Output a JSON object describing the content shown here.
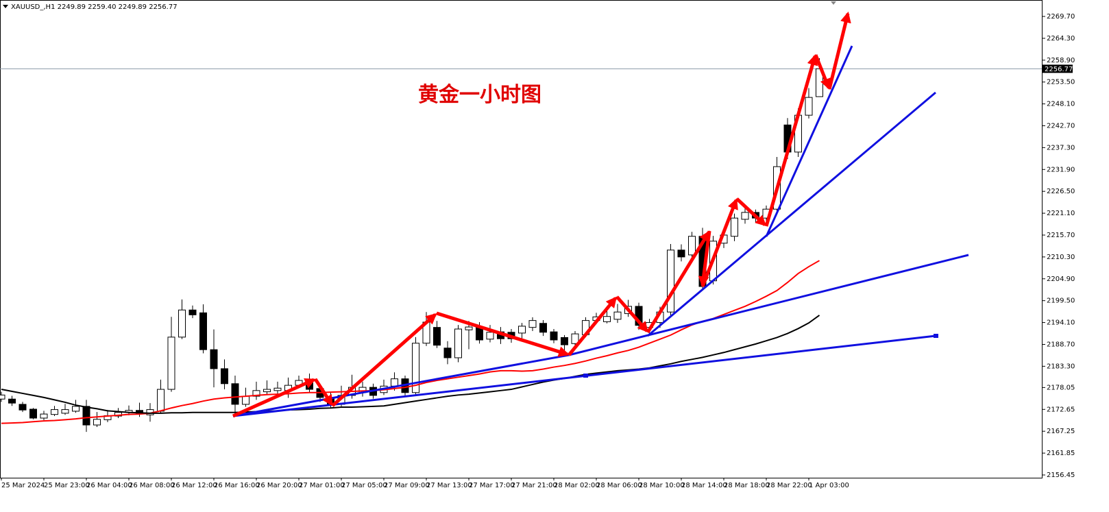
{
  "chart_data": {
    "type": "candlestick",
    "header": "XAUUSD_,H1  2249.89 2259.40 2249.89 2256.77",
    "annotation": "黄金一小时图",
    "last_price": 2256.77,
    "up_color": "#ffffff",
    "down_color": "#000000",
    "categories": [
      "25 Mar 2024",
      null,
      null,
      null,
      "25 Mar 23:00",
      null,
      null,
      null,
      "26 Mar 04:00",
      null,
      null,
      null,
      "26 Mar 08:00",
      null,
      null,
      null,
      "26 Mar 12:00",
      null,
      null,
      null,
      "26 Mar 16:00",
      null,
      null,
      null,
      "26 Mar 20:00",
      null,
      null,
      null,
      "27 Mar 01:00",
      null,
      null,
      null,
      "27 Mar 05:00",
      null,
      null,
      null,
      "27 Mar 09:00",
      null,
      null,
      null,
      "27 Mar 13:00",
      null,
      null,
      null,
      "27 Mar 17:00",
      null,
      null,
      null,
      "27 Mar 21:00",
      null,
      null,
      null,
      "28 Mar 02:00",
      null,
      null,
      null,
      "28 Mar 06:00",
      null,
      null,
      null,
      "28 Mar 10:00",
      null,
      null,
      null,
      "28 Mar 14:00",
      null,
      null,
      null,
      "28 Mar 18:00",
      null,
      null,
      null,
      "28 Mar 22:00",
      null,
      null,
      null,
      "1 Apr 03:00",
      null
    ],
    "open": [
      2175.2,
      2175.2,
      2173.9,
      2172.7,
      2170.5,
      2171.4,
      2171.7,
      2172.2,
      2173.4,
      2168.8,
      2170.1,
      2171.0,
      2171.9,
      2172.4,
      2171.3,
      2172.2,
      2177.6,
      2190.5,
      2197.2,
      2196.5,
      2187.4,
      2182.7,
      2179.0,
      2173.9,
      2175.9,
      2177.0,
      2177.3,
      2177.3,
      2178.6,
      2179.5,
      2177.8,
      2175.6,
      2173.9,
      2176.1,
      2176.8,
      2178.1,
      2176.8,
      2178.4,
      2180.2,
      2176.8,
      2189.0,
      2192.9,
      2187.8,
      2185.4,
      2192.3,
      2192.9,
      2190.0,
      2191.8,
      2191.7,
      2191.5,
      2192.9,
      2193.9,
      2191.8,
      2190.4,
      2188.9,
      2191.1,
      2194.6,
      2194.3,
      2194.9,
      2196.3,
      2198.1,
      2192.9,
      2194.1,
      2196.7,
      2212.0,
      2210.8,
      2215.4,
      2204.4,
      2213.7,
      2215.4,
      2219.6,
      2221.3,
      2219.9,
      2222.1,
      2242.9,
      2236.2,
      2245.3,
      2249.89
    ],
    "high": [
      2177.0,
      2176.0,
      2174.5,
      2173.0,
      2172.3,
      2173.5,
      2174.0,
      2175.0,
      2175.0,
      2172.0,
      2172.5,
      2173.0,
      2173.6,
      2174.3,
      2174.2,
      2180.0,
      2195.5,
      2199.8,
      2198.3,
      2198.6,
      2192.4,
      2185.0,
      2181.0,
      2178.0,
      2179.5,
      2179.8,
      2179.5,
      2180.5,
      2181.0,
      2181.5,
      2178.5,
      2177.0,
      2178.5,
      2181.2,
      2179.5,
      2179.0,
      2180.0,
      2181.8,
      2181.0,
      2190.5,
      2196.7,
      2194.5,
      2189.5,
      2193.5,
      2194.5,
      2194.2,
      2193.5,
      2193.0,
      2192.5,
      2194.0,
      2195.4,
      2194.7,
      2192.5,
      2191.0,
      2192.0,
      2195.4,
      2196.5,
      2197.0,
      2198.7,
      2199.7,
      2199.0,
      2195.0,
      2198.0,
      2213.5,
      2213.4,
      2216.5,
      2217.5,
      2215.5,
      2217.0,
      2221.0,
      2222.5,
      2222.0,
      2223.0,
      2235.0,
      2244.6,
      2247.0,
      2252.0,
      2259.4
    ],
    "low": [
      2174.5,
      2173.5,
      2172.0,
      2170.2,
      2170.0,
      2171.0,
      2171.3,
      2171.8,
      2167.1,
      2168.3,
      2169.5,
      2170.5,
      2171.2,
      2170.8,
      2169.6,
      2171.6,
      2177.0,
      2190.0,
      2195.2,
      2186.5,
      2178.1,
      2177.6,
      2171.0,
      2173.3,
      2175.0,
      2176.3,
      2176.5,
      2175.5,
      2177.9,
      2176.8,
      2174.5,
      2173.0,
      2173.4,
      2175.3,
      2175.8,
      2175.3,
      2176.2,
      2177.3,
      2175.8,
      2176.2,
      2188.3,
      2187.8,
      2183.8,
      2184.3,
      2187.5,
      2188.9,
      2189.2,
      2188.8,
      2189.1,
      2190.2,
      2192.0,
      2190.8,
      2189.0,
      2187.2,
      2188.3,
      2190.5,
      2193.8,
      2193.9,
      2194.0,
      2195.5,
      2192.3,
      2191.2,
      2192.8,
      2195.8,
      2209.2,
      2209.5,
      2202.0,
      2203.5,
      2212.5,
      2214.2,
      2218.5,
      2218.7,
      2218.5,
      2221.0,
      2234.5,
      2235.0,
      2244.5,
      2249.89
    ],
    "close": [
      2176.2,
      2174.2,
      2172.5,
      2170.5,
      2171.5,
      2172.6,
      2172.6,
      2173.4,
      2168.8,
      2170.2,
      2171.1,
      2171.9,
      2172.4,
      2171.6,
      2172.6,
      2177.6,
      2190.5,
      2197.2,
      2196.0,
      2187.4,
      2182.7,
      2179.0,
      2173.9,
      2175.9,
      2177.3,
      2177.6,
      2177.9,
      2178.6,
      2179.8,
      2177.6,
      2175.6,
      2173.9,
      2176.1,
      2178.1,
      2178.1,
      2176.1,
      2178.4,
      2180.2,
      2176.8,
      2189.0,
      2194.2,
      2188.5,
      2185.4,
      2192.5,
      2193.0,
      2189.8,
      2191.7,
      2190.1,
      2190.1,
      2193.2,
      2194.6,
      2191.7,
      2189.8,
      2188.6,
      2191.3,
      2194.6,
      2195.5,
      2195.6,
      2196.7,
      2198.1,
      2193.4,
      2194.1,
      2196.7,
      2212.0,
      2210.3,
      2215.4,
      2203.0,
      2214.2,
      2215.7,
      2219.9,
      2221.3,
      2219.9,
      2222.1,
      2232.6,
      2236.2,
      2245.3,
      2249.7,
      2256.77
    ],
    "lines": [
      {
        "color": "#ff0000",
        "values": [
          2169.2,
          2169.3,
          2169.4,
          2169.6,
          2169.8,
          2169.9,
          2170.1,
          2170.3,
          2170.6,
          2170.8,
          2171.0,
          2171.2,
          2171.4,
          2171.5,
          2171.7,
          2172.3,
          2173.0,
          2173.6,
          2174.1,
          2174.7,
          2175.2,
          2175.5,
          2175.7,
          2175.9,
          2176.1,
          2176.3,
          2176.4,
          2176.5,
          2176.7,
          2176.8,
          2176.8,
          2176.9,
          2177.0,
          2177.1,
          2177.2,
          2177.3,
          2177.5,
          2177.8,
          2178.1,
          2178.6,
          2179.3,
          2179.8,
          2180.2,
          2180.6,
          2181.0,
          2181.4,
          2181.9,
          2182.2,
          2182.2,
          2182.1,
          2182.2,
          2182.6,
          2183.1,
          2183.5,
          2184.0,
          2184.6,
          2185.3,
          2185.9,
          2186.6,
          2187.2,
          2188.0,
          2189.0,
          2190.0,
          2191.0,
          2192.3,
          2193.5,
          2194.4,
          2195.1,
          2196.1,
          2197.1,
          2198.1,
          2199.3,
          2200.6,
          2202.0,
          2204.0,
          2206.2,
          2207.9,
          2209.4
        ]
      },
      {
        "color": "#000000",
        "values": [
          2177.6,
          2177.1,
          2176.6,
          2176.1,
          2175.6,
          2175.0,
          2174.4,
          2173.7,
          2173.2,
          2172.8,
          2172.3,
          2172.1,
          2171.9,
          2171.8,
          2171.7,
          2171.7,
          2171.8,
          2171.8,
          2171.9,
          2171.9,
          2171.9,
          2171.9,
          2171.9,
          2172.0,
          2172.1,
          2172.2,
          2172.3,
          2172.5,
          2172.6,
          2172.7,
          2172.9,
          2173.0,
          2173.2,
          2173.2,
          2173.3,
          2173.4,
          2173.5,
          2173.9,
          2174.3,
          2174.7,
          2175.1,
          2175.5,
          2175.9,
          2176.2,
          2176.4,
          2176.7,
          2177.0,
          2177.3,
          2177.6,
          2178.2,
          2178.8,
          2179.4,
          2179.9,
          2180.3,
          2180.8,
          2181.3,
          2181.6,
          2181.9,
          2182.2,
          2182.4,
          2182.6,
          2182.9,
          2183.4,
          2183.9,
          2184.5,
          2185.0,
          2185.5,
          2186.1,
          2186.7,
          2187.4,
          2188.1,
          2188.8,
          2189.6,
          2190.4,
          2191.4,
          2192.6,
          2194.0,
          2195.9
        ]
      }
    ],
    "ylim": [
      2155.77,
      2273.59
    ],
    "yticks": [
      {
        "value": 2269.7,
        "label": "2269.70"
      },
      {
        "value": 2264.3,
        "label": "2264.30"
      },
      {
        "value": 2258.9,
        "label": "2258.90"
      },
      {
        "value": 2253.5,
        "label": "2253.50"
      },
      {
        "value": 2248.1,
        "label": "2248.10"
      },
      {
        "value": 2242.7,
        "label": "2242.70"
      },
      {
        "value": 2237.3,
        "label": "2237.30"
      },
      {
        "value": 2231.9,
        "label": "2231.90"
      },
      {
        "value": 2226.5,
        "label": "2226.50"
      },
      {
        "value": 2221.1,
        "label": "2221.10"
      },
      {
        "value": 2215.7,
        "label": "2215.70"
      },
      {
        "value": 2210.3,
        "label": "2210.30"
      },
      {
        "value": 2204.9,
        "label": "2204.90"
      },
      {
        "value": 2199.5,
        "label": "2199.50"
      },
      {
        "value": 2194.1,
        "label": "2194.10"
      },
      {
        "value": 2188.7,
        "label": "2188.70"
      },
      {
        "value": 2183.3,
        "label": "2183.30"
      },
      {
        "value": 2178.05,
        "label": "2178.05"
      },
      {
        "value": 2172.65,
        "label": "2172.65"
      },
      {
        "value": 2167.25,
        "label": "2167.25"
      },
      {
        "value": 2161.85,
        "label": "2161.85"
      },
      {
        "value": 2156.45,
        "label": "2156.45"
      }
    ]
  }
}
